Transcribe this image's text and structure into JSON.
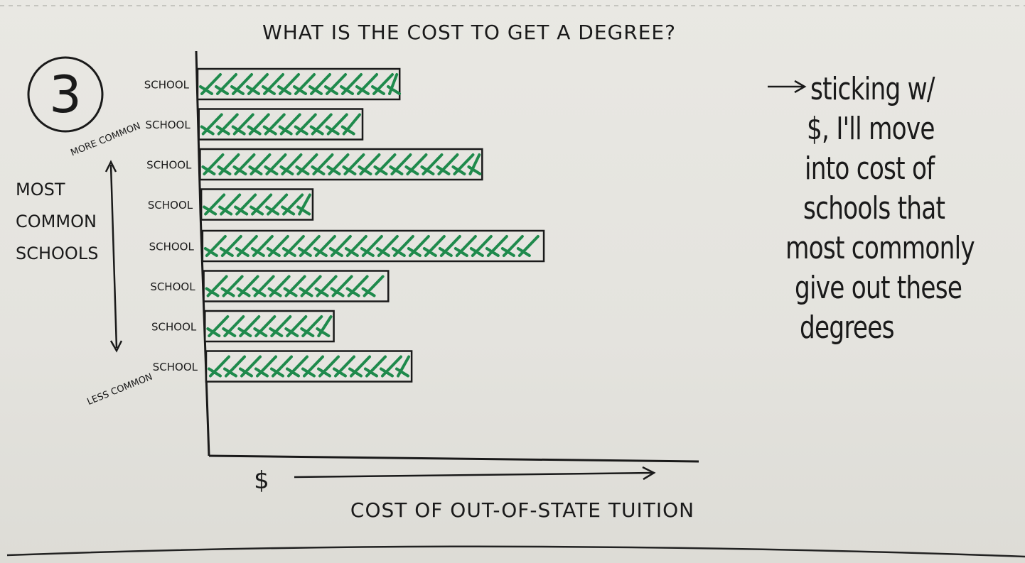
{
  "page": {
    "step_number": "3",
    "side_label_lines": [
      "MOST",
      "COMMON",
      "SCHOOLS"
    ],
    "note_arrow": "→",
    "note_lines": [
      "sticking w/",
      "$, I'll move",
      "into cost of",
      "schools that",
      "most commonly",
      "give out these",
      "degrees"
    ]
  },
  "chart_data": {
    "type": "bar",
    "orientation": "horizontal",
    "title": "WHAT IS THE COST TO GET A DEGREE?",
    "xlabel": "COST OF OUT-OF-STATE TUITION",
    "x_unit_symbol": "$",
    "categories": [
      "SCHOOL",
      "SCHOOL",
      "SCHOOL",
      "SCHOOL",
      "SCHOOL",
      "SCHOOL",
      "SCHOOL",
      "SCHOOL"
    ],
    "values": [
      58,
      47,
      81,
      32,
      98,
      53,
      37,
      59
    ],
    "bar_color": "#1f8a4c",
    "axis_top_label": "MORE COMMON",
    "axis_bottom_label": "LESS COMMON",
    "grid": false,
    "legend": "none"
  }
}
